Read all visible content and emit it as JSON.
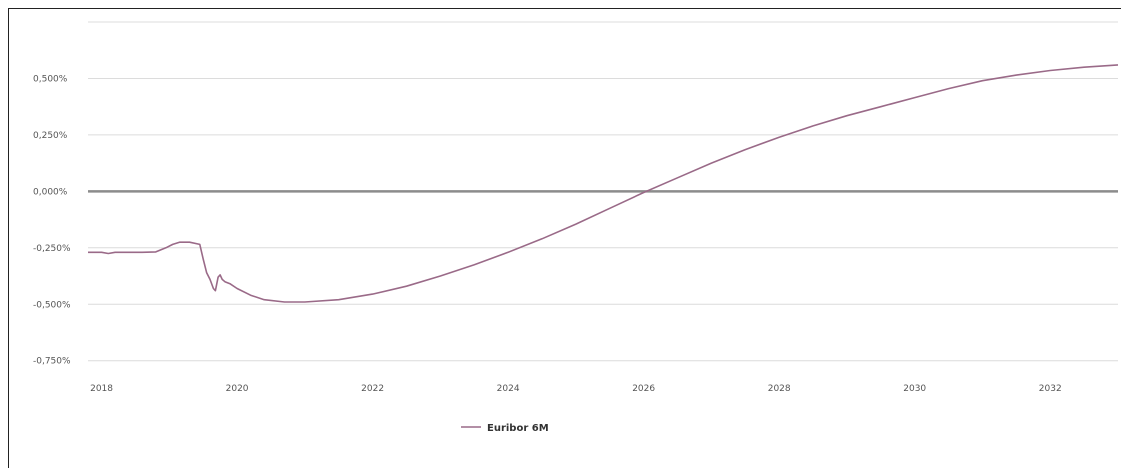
{
  "chart_data": {
    "type": "line",
    "title": "",
    "xlabel": "",
    "ylabel": "",
    "xlim": [
      2017.8,
      2033.0
    ],
    "ylim": [
      -0.8,
      0.75
    ],
    "grid": true,
    "zero_line": true,
    "legend_position": "bottom-center",
    "y_ticks": [
      {
        "value": 0.5,
        "label": "0,500%"
      },
      {
        "value": 0.25,
        "label": "0,250%"
      },
      {
        "value": 0.0,
        "label": "0,000%"
      },
      {
        "value": -0.25,
        "label": "-0,250%"
      },
      {
        "value": -0.5,
        "label": "-0,500%"
      },
      {
        "value": -0.75,
        "label": "-0,750%"
      }
    ],
    "x_ticks": [
      {
        "value": 2018,
        "label": "2018"
      },
      {
        "value": 2020,
        "label": "2020"
      },
      {
        "value": 2022,
        "label": "2022"
      },
      {
        "value": 2024,
        "label": "2024"
      },
      {
        "value": 2026,
        "label": "2026"
      },
      {
        "value": 2028,
        "label": "2028"
      },
      {
        "value": 2030,
        "label": "2030"
      },
      {
        "value": 2032,
        "label": "2032"
      }
    ],
    "series": [
      {
        "name": "Euribor 6M",
        "color": "#9a6a88",
        "x": [
          2017.8,
          2018.0,
          2018.1,
          2018.2,
          2018.4,
          2018.6,
          2018.8,
          2018.95,
          2019.05,
          2019.15,
          2019.3,
          2019.45,
          2019.5,
          2019.55,
          2019.6,
          2019.65,
          2019.68,
          2019.72,
          2019.75,
          2019.78,
          2019.82,
          2019.9,
          2020.0,
          2020.2,
          2020.4,
          2020.7,
          2021.0,
          2021.5,
          2022.0,
          2022.5,
          2023.0,
          2023.5,
          2024.0,
          2024.5,
          2025.0,
          2025.5,
          2026.0,
          2026.5,
          2027.0,
          2027.5,
          2028.0,
          2028.5,
          2029.0,
          2029.5,
          2030.0,
          2030.5,
          2031.0,
          2031.5,
          2032.0,
          2032.5,
          2033.0
        ],
        "y": [
          -0.27,
          -0.27,
          -0.275,
          -0.27,
          -0.27,
          -0.27,
          -0.268,
          -0.25,
          -0.235,
          -0.225,
          -0.225,
          -0.235,
          -0.3,
          -0.36,
          -0.39,
          -0.43,
          -0.44,
          -0.38,
          -0.37,
          -0.39,
          -0.4,
          -0.41,
          -0.43,
          -0.46,
          -0.48,
          -0.49,
          -0.49,
          -0.48,
          -0.455,
          -0.42,
          -0.375,
          -0.325,
          -0.27,
          -0.21,
          -0.145,
          -0.075,
          -0.005,
          0.06,
          0.125,
          0.185,
          0.24,
          0.29,
          0.335,
          0.375,
          0.415,
          0.455,
          0.49,
          0.515,
          0.535,
          0.55,
          0.56
        ]
      }
    ]
  }
}
